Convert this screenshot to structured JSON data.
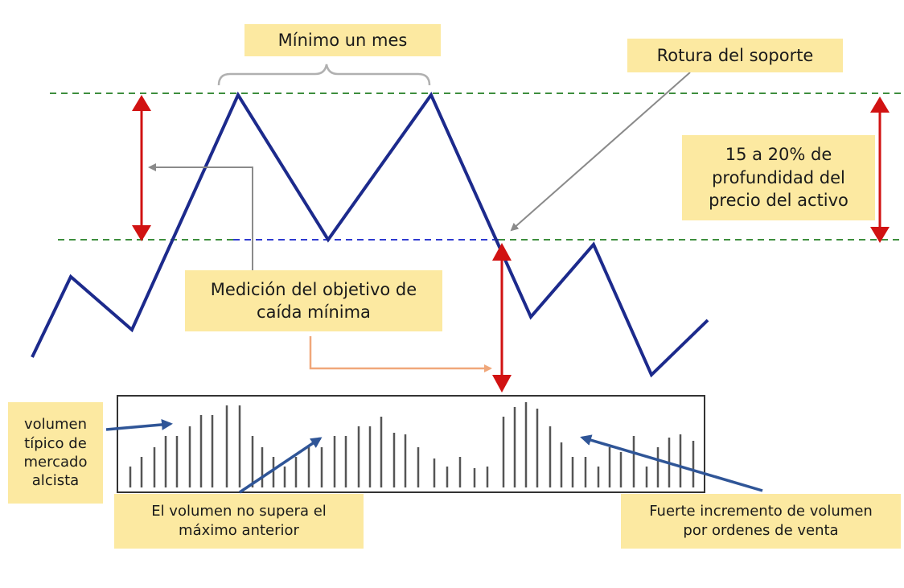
{
  "annotations": {
    "minimum_month": "Mínimo un mes",
    "support_break": "Rotura del soporte",
    "depth": "15 a 20% de\nprofundidad del\nprecio del activo",
    "measurement": "Medición del objetivo de\ncaída mínima",
    "typical_volume": "volumen\ntípico de\nmercado\nalcista",
    "volume_not_exceed": "El volumen no supera el\nmáximo anterior",
    "volume_increase": "Fuerte incremento de volumen\npor ordenes de venta"
  },
  "colors": {
    "price_line": "#1c2a8c",
    "red_arrow": "#d11212",
    "gray_arrow": "#8a8a8a",
    "orange_arrow": "#f0a77a",
    "blue_arrow": "#2f5597",
    "guide_dashed": "#3e8e3e",
    "neckline_dashed": "#2f3bd0",
    "label_background": "#fce9a1",
    "volume_bar": "#555555"
  }
}
